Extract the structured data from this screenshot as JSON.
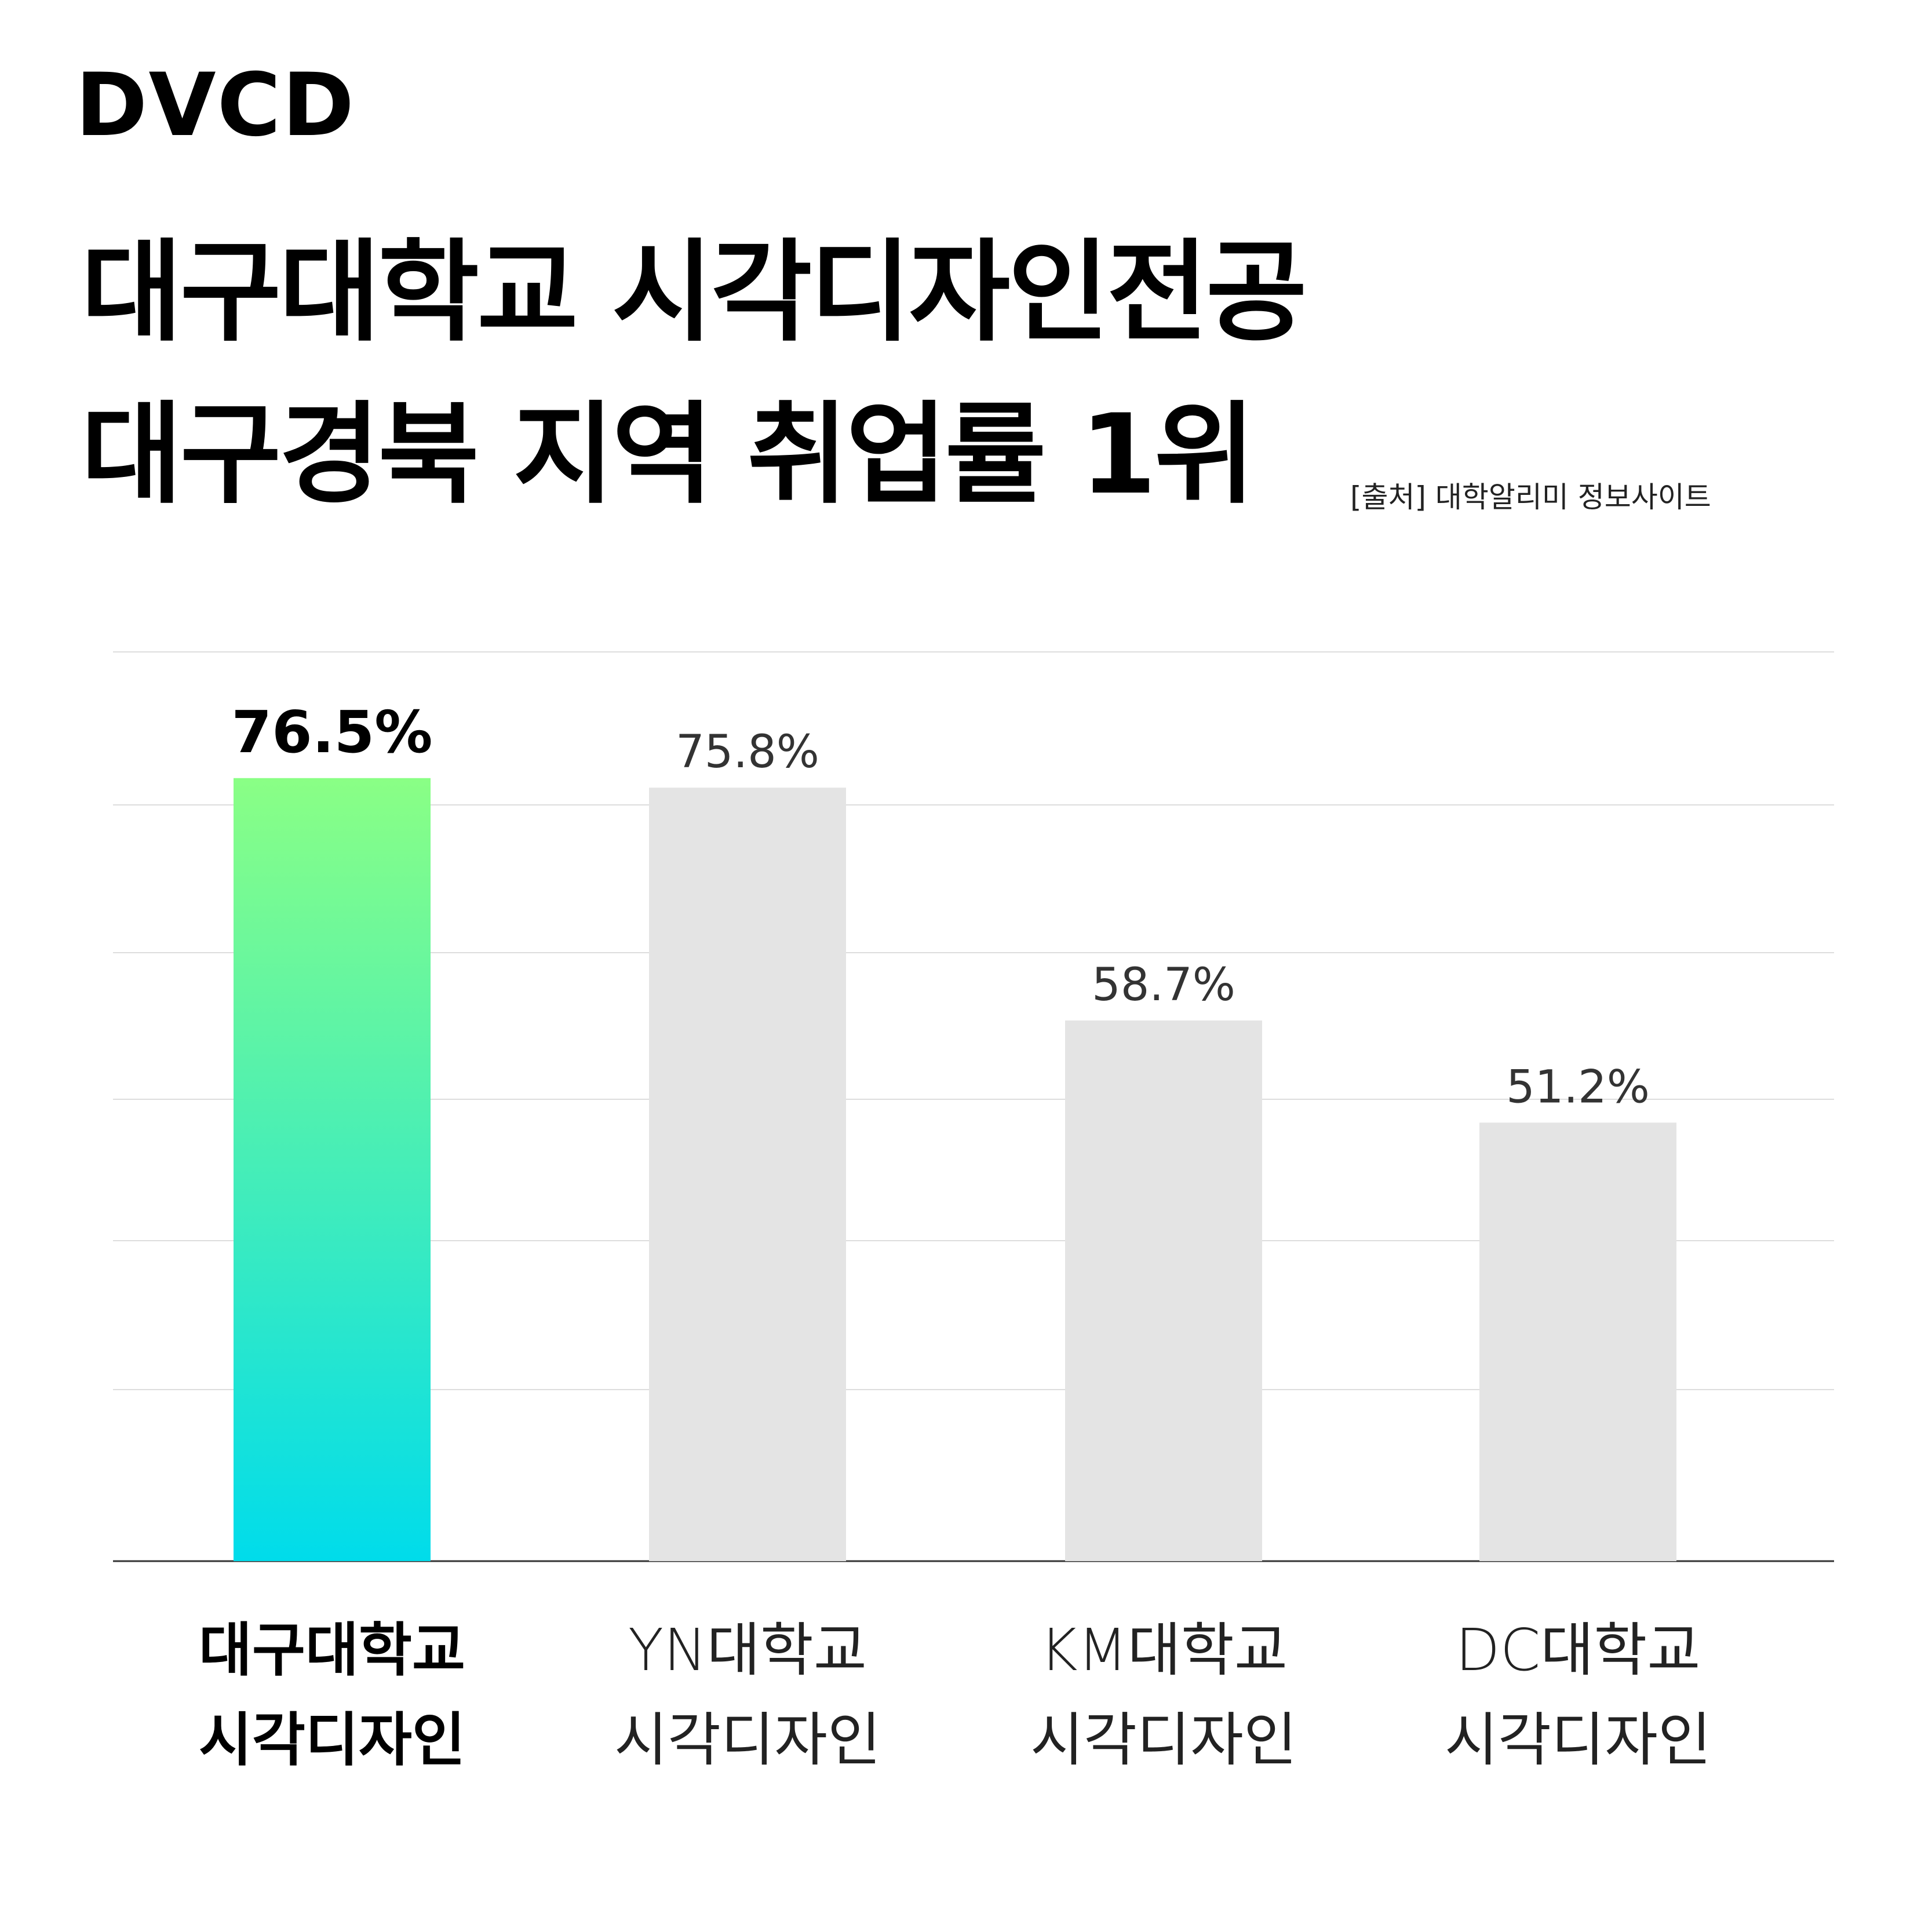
{
  "logo": "DVCD",
  "title_line1": "대구대학교 시각디자인전공",
  "title_line2": "대구경북 지역 취업률 1위",
  "source": "[출처] 대학알리미 정보사이트",
  "chart_data": {
    "type": "bar",
    "categories": [
      [
        "대구대학교",
        "시각디자인"
      ],
      [
        "YN대학교",
        "시각디자인"
      ],
      [
        "KM대학교",
        "시각디자인"
      ],
      [
        "DC대학교",
        "시각디자인"
      ]
    ],
    "values": [
      76.5,
      75.8,
      58.7,
      51.2
    ],
    "data_labels": [
      "76.5%",
      "75.8%",
      "58.7%",
      "51.2%"
    ],
    "unit": "%",
    "highlight_index": 0,
    "grid": true,
    "colors": {
      "highlight_top": "#8AFF85",
      "highlight_bottom": "#00DCEB",
      "other": "#E4E4E4",
      "grid": "#DDDDDD",
      "axis": "#333333"
    }
  }
}
